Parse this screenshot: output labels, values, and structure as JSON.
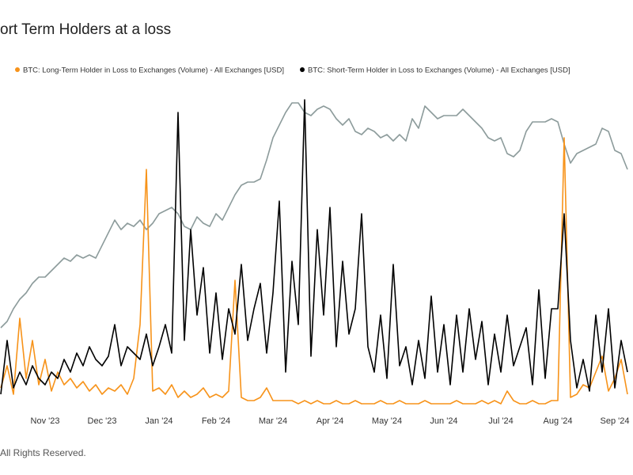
{
  "chart_data": {
    "type": "line",
    "title": "ort Term Holders at a loss",
    "footer": "All Rights Reserved.",
    "categories": [
      null,
      null,
      null,
      null,
      null,
      null,
      null,
      "Nov '23",
      null,
      null,
      null,
      null,
      null,
      null,
      null,
      null,
      "Dec '23",
      null,
      null,
      null,
      null,
      null,
      null,
      null,
      null,
      "Jan '24",
      null,
      null,
      null,
      null,
      null,
      null,
      null,
      null,
      "Feb '24",
      null,
      null,
      null,
      null,
      null,
      null,
      null,
      null,
      "Mar '24",
      null,
      null,
      null,
      null,
      null,
      null,
      null,
      null,
      "Apr '24",
      null,
      null,
      null,
      null,
      null,
      null,
      null,
      null,
      "May '24",
      null,
      null,
      null,
      null,
      null,
      null,
      null,
      null,
      "Jun '24",
      null,
      null,
      null,
      null,
      null,
      null,
      null,
      null,
      "Jul '24",
      null,
      null,
      null,
      null,
      null,
      null,
      null,
      null,
      "Aug '24",
      null,
      null,
      null,
      null,
      null,
      null,
      null,
      null,
      "Sep '24",
      null,
      null
    ],
    "ylim": [
      0,
      100
    ],
    "series": [
      {
        "color": "#8c9b9b",
        "values": [
          24,
          26,
          30,
          33,
          35,
          38,
          40,
          40,
          42,
          44,
          46,
          45,
          47,
          46,
          47,
          46,
          50,
          54,
          58,
          55,
          57,
          56,
          58,
          55,
          57,
          60,
          61,
          62,
          60,
          56,
          55,
          59,
          57,
          56,
          60,
          58,
          62,
          66,
          69,
          70,
          70,
          71,
          77,
          84,
          88,
          92,
          95,
          95,
          92,
          91,
          93,
          94,
          93,
          90,
          88,
          90,
          86,
          85,
          87,
          86,
          84,
          85,
          83,
          85,
          83,
          90,
          87,
          94,
          92,
          90,
          91,
          91,
          91,
          93,
          91,
          89,
          87,
          84,
          83,
          84,
          79,
          78,
          80,
          86,
          89,
          89,
          89,
          90,
          89,
          82,
          76,
          79,
          80,
          81,
          82,
          87,
          86,
          80,
          79,
          74
        ]
      },
      {
        "name": "BTC: Long-Term Holder in Loss to Exchanges (Volume) - All Exchanges [USD]",
        "color": "#f7931a",
        "values": [
          5,
          12,
          3,
          27,
          8,
          20,
          6,
          14,
          4,
          10,
          6,
          8,
          5,
          7,
          4,
          6,
          3,
          5,
          4,
          6,
          3,
          8,
          25,
          74,
          4,
          5,
          3,
          6,
          2,
          4,
          2,
          3,
          5,
          2,
          3,
          2,
          4,
          39,
          2,
          1,
          1,
          2,
          5,
          1,
          1,
          1,
          1,
          0,
          1,
          0,
          1,
          0,
          0,
          1,
          0,
          0,
          1,
          0,
          0,
          0,
          1,
          0,
          0,
          1,
          0,
          0,
          0,
          1,
          0,
          0,
          0,
          0,
          1,
          0,
          0,
          0,
          1,
          0,
          1,
          0,
          4,
          1,
          0,
          0,
          1,
          0,
          0,
          1,
          1,
          84,
          2,
          3,
          6,
          5,
          10,
          15,
          4,
          8,
          14,
          3
        ]
      },
      {
        "name": "BTC: Short-Term Holder in Loss to Exchanges (Volume) - All Exchanges [USD]",
        "color": "#000000",
        "values": [
          3,
          20,
          5,
          10,
          6,
          12,
          8,
          6,
          10,
          8,
          14,
          10,
          16,
          12,
          18,
          14,
          12,
          15,
          25,
          12,
          18,
          16,
          14,
          22,
          12,
          18,
          25,
          16,
          92,
          20,
          55,
          28,
          43,
          16,
          35,
          14,
          30,
          22,
          44,
          20,
          30,
          38,
          16,
          35,
          64,
          10,
          45,
          25,
          96,
          15,
          55,
          28,
          62,
          18,
          45,
          22,
          30,
          60,
          18,
          10,
          28,
          8,
          44,
          12,
          18,
          6,
          20,
          8,
          34,
          10,
          25,
          6,
          28,
          10,
          30,
          14,
          26,
          6,
          22,
          10,
          28,
          12,
          18,
          24,
          6,
          36,
          8,
          30,
          30,
          60,
          20,
          5,
          14,
          4,
          28,
          10,
          30,
          5,
          20,
          10
        ]
      }
    ]
  }
}
